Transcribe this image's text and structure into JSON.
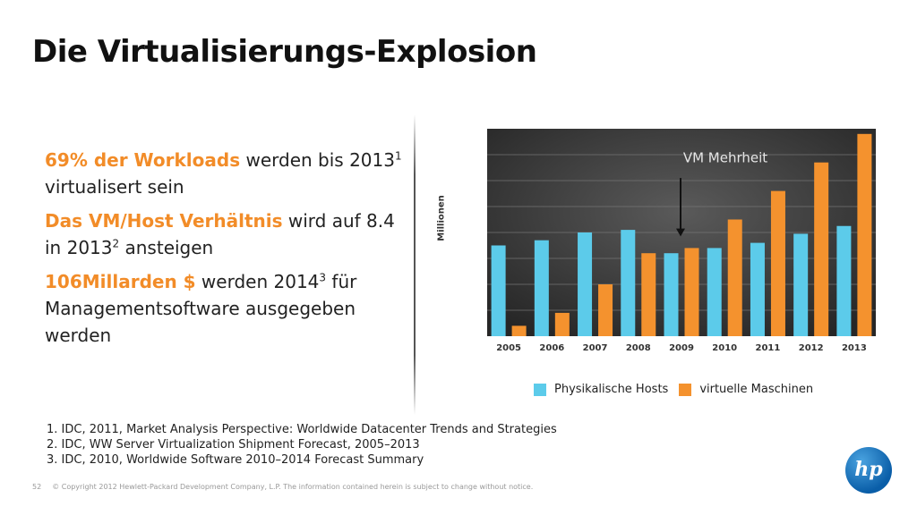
{
  "slide": {
    "title": "Die Virtualisierungs-Explosion",
    "bullets": [
      {
        "hl": "69% der Workloads",
        "text1": " werden bis 2013",
        "sup": "1",
        "text2": " virtualisert sein"
      },
      {
        "hl": "Das VM/Host Verhältnis",
        "text1": " wird auf  8.4 in 2013",
        "sup": "2",
        "text2": " ansteigen"
      },
      {
        "hl": "106Millarden $",
        "text1": " werden 2014",
        "sup": "3",
        "text2": " für Managementsoftware ausgegeben werden"
      }
    ],
    "footnotes": [
      "1. IDC, 2011, Market Analysis Perspective: Worldwide Datacenter Trends and Strategies",
      "2. IDC, WW Server Virtualization Shipment Forecast, 2005–2013",
      "3. IDC, 2010, Worldwide Software 2010–2014 Forecast Summary"
    ],
    "page_number": "52",
    "copyright": "© Copyright 2012 Hewlett-Packard Development Company, L.P. The information contained herein is subject to change without notice.",
    "logo_text": "hp"
  },
  "chart_data": {
    "type": "bar",
    "ylabel": "Millionen",
    "ylim": [
      0,
      8
    ],
    "categories": [
      "2005",
      "2006",
      "2007",
      "2008",
      "2009",
      "2010",
      "2011",
      "2012",
      "2013"
    ],
    "series": [
      {
        "name": "Physikalische Hosts",
        "color": "#5ccbea",
        "values": [
          3.5,
          3.7,
          4.0,
          4.1,
          3.2,
          3.4,
          3.6,
          3.95,
          4.25
        ]
      },
      {
        "name": "virtuelle Maschinen",
        "color": "#f4922e",
        "values": [
          0.4,
          0.9,
          2.0,
          3.2,
          3.4,
          4.5,
          5.6,
          6.7,
          7.8
        ]
      }
    ],
    "annotation": {
      "text": "VM Mehrheit",
      "category": "2009"
    },
    "grid": true,
    "background": "#3a3a3a"
  }
}
